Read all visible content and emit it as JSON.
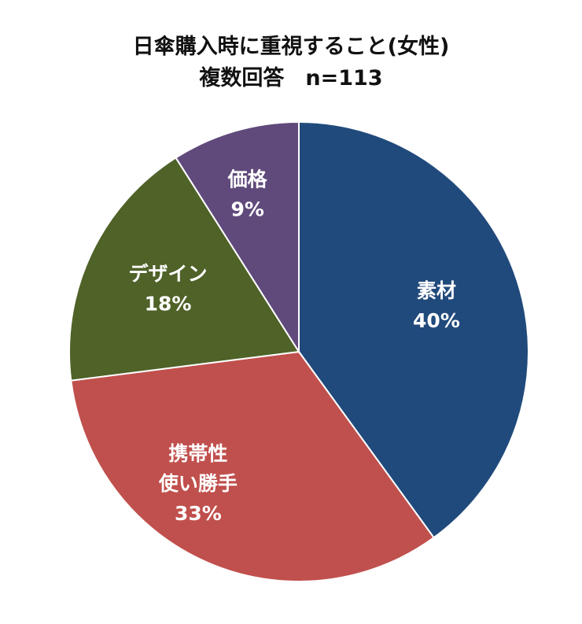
{
  "chart_data": {
    "type": "pie",
    "title": "日傘購入時に重視すること(女性)",
    "subtitle": "複数回答　n=113",
    "slices": [
      {
        "label_lines": [
          "素材"
        ],
        "value": 40,
        "value_label": "40%",
        "color": "#214a7c"
      },
      {
        "label_lines": [
          "携帯性",
          "使い勝手"
        ],
        "value": 33,
        "value_label": "33%",
        "color": "#c0504d"
      },
      {
        "label_lines": [
          "デザイン"
        ],
        "value": 18,
        "value_label": "18%",
        "color": "#4f6228"
      },
      {
        "label_lines": [
          "価格"
        ],
        "value": 9,
        "value_label": "9%",
        "color": "#604a7b"
      }
    ],
    "start_angle": "12 o'clock",
    "direction": "clockwise",
    "legend": "none"
  }
}
